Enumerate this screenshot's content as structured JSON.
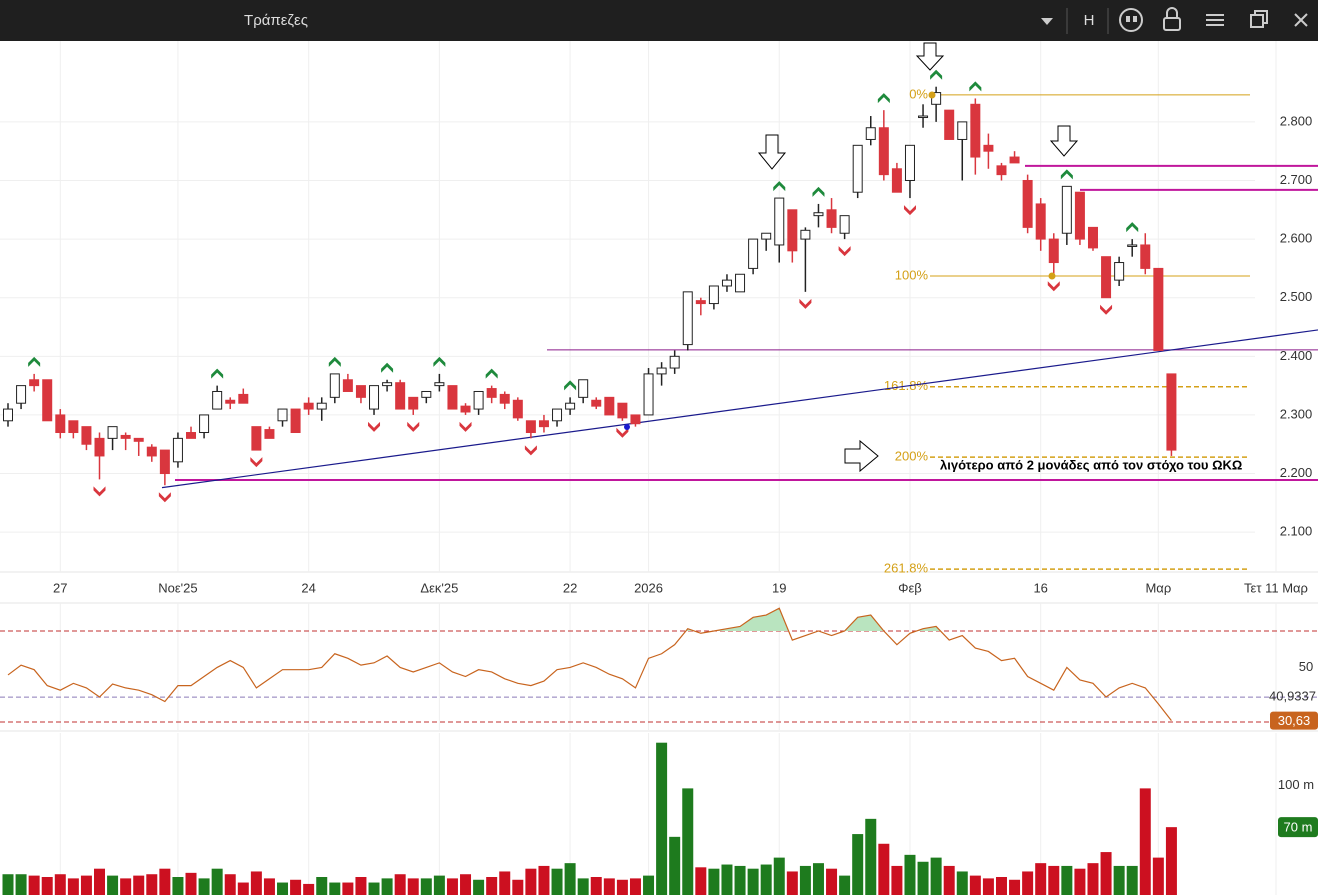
{
  "window": {
    "title": "Τράπεζες",
    "button_h": "H"
  },
  "chart_data": {
    "type": "candlestick",
    "categories": [
      null,
      null,
      null,
      null,
      "27",
      null,
      null,
      null,
      null,
      null,
      null,
      null,
      null,
      "Νοε'25",
      null,
      null,
      null,
      null,
      null,
      null,
      null,
      null,
      null,
      "24",
      null,
      null,
      null,
      null,
      null,
      null,
      null,
      null,
      null,
      "Δεκ'25",
      null,
      null,
      null,
      null,
      null,
      null,
      null,
      null,
      null,
      "22",
      null,
      null,
      null,
      null,
      null,
      "2026",
      null,
      null,
      null,
      null,
      null,
      null,
      null,
      null,
      null,
      "19",
      null,
      null,
      null,
      null,
      null,
      null,
      null,
      null,
      null,
      "Φεβ",
      null,
      null,
      null,
      null,
      null,
      null,
      null,
      null,
      null,
      "16",
      null,
      null,
      null,
      null,
      null,
      null,
      null,
      null,
      "Μαρ",
      null,
      null,
      null,
      null,
      null,
      null,
      null,
      null,
      "Τετ 11 Μαρ"
    ],
    "open": [
      2.29,
      2.32,
      2.36,
      2.36,
      2.3,
      2.29,
      2.28,
      2.26,
      2.26,
      2.265,
      2.26,
      2.245,
      2.24,
      2.22,
      2.27,
      2.27,
      2.31,
      2.325,
      2.335,
      2.28,
      2.275,
      2.29,
      2.31,
      2.32,
      2.31,
      2.33,
      2.36,
      2.35,
      2.31,
      2.35,
      2.355,
      2.33,
      2.33,
      2.35,
      2.35,
      2.315,
      2.31,
      2.345,
      2.335,
      2.325,
      2.29,
      2.29,
      2.29,
      2.31,
      2.33,
      2.325,
      2.33,
      2.32,
      2.3,
      2.3,
      2.37,
      2.38,
      2.42,
      2.495,
      2.49,
      2.52,
      2.51,
      2.55,
      2.6,
      2.59,
      2.65,
      2.6,
      2.64,
      2.65,
      2.61,
      2.68,
      2.77,
      2.79,
      2.72,
      2.7,
      2.81,
      2.83,
      2.82,
      2.77,
      2.83,
      2.76,
      2.725,
      2.74,
      2.7,
      2.66,
      2.6,
      2.61,
      2.68,
      2.62,
      2.57,
      2.53,
      2.59,
      2.59,
      2.55,
      2.37,
      null,
      null,
      null,
      null,
      null,
      null,
      null,
      null
    ],
    "high": [
      2.32,
      2.35,
      2.37,
      2.36,
      2.31,
      2.29,
      2.28,
      2.27,
      2.28,
      2.27,
      2.26,
      2.25,
      2.24,
      2.27,
      2.28,
      2.3,
      2.35,
      2.33,
      2.345,
      2.28,
      2.28,
      2.31,
      2.31,
      2.33,
      2.33,
      2.37,
      2.37,
      2.35,
      2.35,
      2.36,
      2.36,
      2.33,
      2.34,
      2.37,
      2.35,
      2.32,
      2.34,
      2.35,
      2.34,
      2.33,
      2.29,
      2.3,
      2.31,
      2.33,
      2.36,
      2.33,
      2.33,
      2.32,
      2.3,
      2.38,
      2.39,
      2.41,
      2.51,
      2.5,
      2.52,
      2.54,
      2.54,
      2.6,
      2.61,
      2.67,
      2.65,
      2.62,
      2.66,
      2.67,
      2.64,
      2.76,
      2.81,
      2.82,
      2.73,
      2.76,
      2.83,
      2.86,
      2.82,
      2.8,
      2.84,
      2.78,
      2.73,
      2.75,
      2.71,
      2.67,
      2.61,
      2.69,
      2.68,
      2.62,
      2.57,
      2.57,
      2.6,
      2.61,
      2.55,
      2.37,
      null,
      null,
      null,
      null,
      null,
      null,
      null,
      null
    ],
    "low": [
      2.28,
      2.31,
      2.34,
      2.29,
      2.26,
      2.26,
      2.24,
      2.19,
      2.24,
      2.24,
      2.23,
      2.22,
      2.18,
      2.21,
      2.26,
      2.26,
      2.31,
      2.31,
      2.32,
      2.24,
      2.26,
      2.28,
      2.27,
      2.3,
      2.29,
      2.32,
      2.34,
      2.32,
      2.3,
      2.34,
      2.31,
      2.3,
      2.32,
      2.34,
      2.31,
      2.3,
      2.3,
      2.32,
      2.31,
      2.29,
      2.26,
      2.27,
      2.28,
      2.3,
      2.32,
      2.31,
      2.3,
      2.29,
      2.28,
      2.3,
      2.35,
      2.37,
      2.41,
      2.47,
      2.48,
      2.51,
      2.51,
      2.54,
      2.58,
      2.56,
      2.56,
      2.51,
      2.62,
      2.61,
      2.6,
      2.67,
      2.76,
      2.7,
      2.68,
      2.67,
      2.79,
      2.8,
      2.77,
      2.7,
      2.71,
      2.72,
      2.7,
      2.73,
      2.61,
      2.58,
      2.54,
      2.59,
      2.59,
      2.58,
      2.5,
      2.52,
      2.57,
      2.54,
      2.41,
      2.23,
      null,
      null,
      null,
      null,
      null,
      null,
      null,
      null
    ],
    "close": [
      2.31,
      2.35,
      2.35,
      2.29,
      2.27,
      2.27,
      2.25,
      2.23,
      2.28,
      2.26,
      2.255,
      2.23,
      2.2,
      2.26,
      2.26,
      2.3,
      2.34,
      2.32,
      2.32,
      2.24,
      2.26,
      2.31,
      2.27,
      2.31,
      2.32,
      2.37,
      2.34,
      2.33,
      2.35,
      2.355,
      2.31,
      2.31,
      2.34,
      2.355,
      2.31,
      2.305,
      2.34,
      2.33,
      2.32,
      2.295,
      2.27,
      2.28,
      2.31,
      2.32,
      2.36,
      2.315,
      2.3,
      2.295,
      2.285,
      2.37,
      2.38,
      2.4,
      2.51,
      2.49,
      2.52,
      2.53,
      2.54,
      2.6,
      2.61,
      2.67,
      2.58,
      2.615,
      2.645,
      2.62,
      2.64,
      2.76,
      2.79,
      2.71,
      2.68,
      2.76,
      2.81,
      2.85,
      2.77,
      2.8,
      2.74,
      2.75,
      2.71,
      2.73,
      2.62,
      2.6,
      2.56,
      2.69,
      2.6,
      2.585,
      2.5,
      2.56,
      2.59,
      2.55,
      2.41,
      2.24,
      null,
      null,
      null,
      null,
      null,
      null,
      null,
      null
    ],
    "up_color": "#ffffff",
    "down_color": "#d9363e",
    "ylim": [
      2.032,
      2.938
    ],
    "yticks": [
      {
        "value": 2.1,
        "label": "2.100"
      },
      {
        "value": 2.2,
        "label": "2.200"
      },
      {
        "value": 2.3,
        "label": "2.300"
      },
      {
        "value": 2.4,
        "label": "2.400"
      },
      {
        "value": 2.5,
        "label": "2.500"
      },
      {
        "value": 2.6,
        "label": "2.600"
      },
      {
        "value": 2.7,
        "label": "2.700"
      },
      {
        "value": 2.8,
        "label": "2.800"
      }
    ],
    "grid": true,
    "fractals_up": [
      2,
      16,
      25,
      29,
      33,
      37,
      43,
      59,
      62,
      67,
      71,
      74,
      81,
      86
    ],
    "fractals_down": [
      7,
      12,
      19,
      28,
      31,
      35,
      40,
      47,
      61,
      64,
      69,
      80,
      84
    ],
    "fib": {
      "color": "#d4a017",
      "levels": [
        {
          "value": 2.846,
          "label": "0%",
          "dashed": false
        },
        {
          "value": 2.537,
          "label": "100%",
          "dashed": false
        },
        {
          "value": 2.348,
          "label": "161.8%",
          "dashed": true
        },
        {
          "value": 2.228,
          "label": "200%",
          "dashed": true
        },
        {
          "value": 2.037,
          "label": "261.8%",
          "dashed": true
        }
      ]
    },
    "hlines": [
      {
        "value": 2.725,
        "color": "#c0169c"
      },
      {
        "value": 2.684,
        "color": "#c0169c"
      },
      {
        "value": 2.189,
        "color": "#c0169c"
      },
      {
        "value": 2.411,
        "color": "#8a1a8a"
      }
    ],
    "trendline": {
      "values": [
        2.176,
        2.445
      ],
      "color": "#1a1a8c"
    },
    "annotation": "λιγότερο από 2 μονάδες από τον στόχο του ΩΚΩ",
    "rsi": {
      "values": [
        50.7,
        55,
        53,
        46,
        44,
        47,
        45,
        41,
        46.7,
        45,
        44,
        42,
        39,
        46,
        46,
        50,
        54,
        57,
        54,
        45,
        49,
        53,
        53,
        53,
        54,
        60,
        58,
        55,
        56,
        59,
        54,
        52,
        54,
        56,
        52,
        50,
        53,
        52,
        49,
        47,
        46,
        48,
        53,
        54,
        56,
        54,
        51,
        49,
        45,
        58,
        60,
        64,
        71,
        69,
        70,
        71,
        72,
        76,
        77,
        80,
        66,
        68,
        70,
        68,
        70,
        76,
        77,
        70,
        64,
        69,
        71,
        72,
        66,
        68,
        62.5,
        61,
        57,
        58,
        50,
        47,
        44,
        54,
        48.5,
        47,
        41,
        45,
        47,
        45,
        38,
        30.63,
        null,
        null,
        null,
        null,
        null,
        null,
        null,
        null
      ],
      "color": "#c8641e",
      "fill_color": "#b9e4bf",
      "ylim": [
        26.5,
        82.3
      ],
      "yticks": [
        50
      ],
      "levels": [
        70,
        30
      ],
      "ma": {
        "value": 40.9337,
        "label": "40,9337"
      },
      "current": {
        "value": 30.63,
        "label": "30,63"
      }
    },
    "volume": {
      "values": [
        36,
        36,
        35,
        34,
        36,
        33,
        35,
        40,
        35,
        33,
        35,
        36,
        40,
        34,
        37,
        33,
        40,
        36,
        30,
        38,
        33,
        30,
        32,
        29,
        34,
        30,
        30,
        34,
        30,
        33,
        36,
        33,
        33,
        35,
        33,
        36,
        32,
        34,
        38,
        32,
        40,
        42,
        40,
        44,
        33,
        34,
        33,
        32,
        33,
        35,
        131,
        63,
        98,
        41,
        40,
        43,
        42,
        40,
        43,
        48,
        38,
        42,
        44,
        40,
        35,
        65,
        76,
        58,
        42,
        50,
        45,
        48,
        42,
        38,
        35,
        33,
        34,
        32,
        38,
        44,
        42,
        42,
        40,
        44,
        52,
        42,
        42,
        98,
        48,
        70,
        null,
        null,
        null,
        null,
        null,
        null,
        null,
        null
      ],
      "up_color": "#1e7b1e",
      "down_color": "#cc1020",
      "ylim": [
        21,
        138
      ],
      "yticks": [
        {
          "value": 100,
          "label": "100 m"
        }
      ],
      "current": {
        "value": 70,
        "label": "70 m"
      }
    }
  }
}
